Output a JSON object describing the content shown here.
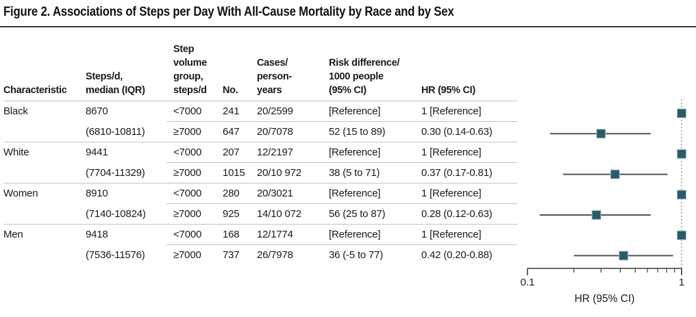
{
  "figure": {
    "title": "Figure 2. Associations of Steps per Day With All-Cause Mortality by Race and by Sex"
  },
  "table": {
    "headers": [
      "Characteristic",
      "Steps/d,\nmedian (IQR)",
      "Step\nvolume\ngroup,\nsteps/d",
      "No.",
      "Cases/\nperson-\nyears",
      "Risk difference/\n1000 people\n(95% CI)",
      "HR (95% CI)"
    ],
    "rows": [
      {
        "cells": [
          "Black",
          "8670",
          "<7000",
          "241",
          "20/2599",
          "[Reference]",
          "1 [Reference]"
        ]
      },
      {
        "cells": [
          "",
          "(6810-10811)",
          "≥7000",
          "647",
          "20/7078",
          "52 (15 to 89)",
          "0.30 (0.14-0.63)"
        ]
      },
      {
        "cells": [
          "White",
          "9441",
          "<7000",
          "207",
          "12/2197",
          "[Reference]",
          "1 [Reference]"
        ]
      },
      {
        "cells": [
          "",
          "(7704-11329)",
          "≥7000",
          "1015",
          "20/10 972",
          "38 (5 to 71)",
          "0.37 (0.17-0.81)"
        ]
      },
      {
        "cells": [
          "Women",
          "8910",
          "<7000",
          "280",
          "20/3021",
          "[Reference]",
          "1 [Reference]"
        ]
      },
      {
        "cells": [
          "",
          "(7140-10824)",
          "≥7000",
          "925",
          "14/10 072",
          "56 (25 to 87)",
          "0.28 (0.12-0.63)"
        ]
      },
      {
        "cells": [
          "Men",
          "9418",
          "<7000",
          "168",
          "12/1774",
          "[Reference]",
          "1 [Reference]"
        ]
      },
      {
        "cells": [
          "",
          "(7536-11576)",
          "≥7000",
          "737",
          "26/7978",
          "36 (-5 to 77)",
          "0.42 (0.20-0.88)"
        ]
      }
    ]
  },
  "chart_data": {
    "type": "scatter",
    "subtype": "forest-plot",
    "xlabel": "HR (95% CI)",
    "x_scale": "log10",
    "xlim": [
      0.1,
      1
    ],
    "x_ticks": [
      0.1,
      0.2,
      0.3,
      0.4,
      0.5,
      0.6,
      0.7,
      0.8,
      0.9,
      1
    ],
    "x_tick_labels": [
      "0.1",
      "1"
    ],
    "reference_line_at": 1,
    "legend": "none",
    "grid": "off",
    "marker": "square",
    "points": [
      {
        "row": "Black <7000",
        "hr": 1.0,
        "reference": true
      },
      {
        "row": "Black ≥7000",
        "hr": 0.3,
        "lo": 0.14,
        "hi": 0.63
      },
      {
        "row": "White <7000",
        "hr": 1.0,
        "reference": true
      },
      {
        "row": "White ≥7000",
        "hr": 0.37,
        "lo": 0.17,
        "hi": 0.81
      },
      {
        "row": "Women <7000",
        "hr": 1.0,
        "reference": true
      },
      {
        "row": "Women ≥7000",
        "hr": 0.28,
        "lo": 0.12,
        "hi": 0.63
      },
      {
        "row": "Men <7000",
        "hr": 1.0,
        "reference": true
      },
      {
        "row": "Men ≥7000",
        "hr": 0.42,
        "lo": 0.2,
        "hi": 0.88
      }
    ],
    "colors": {
      "marker_fill": "#2a5b69",
      "marker_edge": "#b3c3ca",
      "ci_line": "#4d565b",
      "reference_dotted_line": "#95a0a4",
      "axis": "#3a3a3a",
      "table_rule": "#b7c6cb"
    }
  }
}
